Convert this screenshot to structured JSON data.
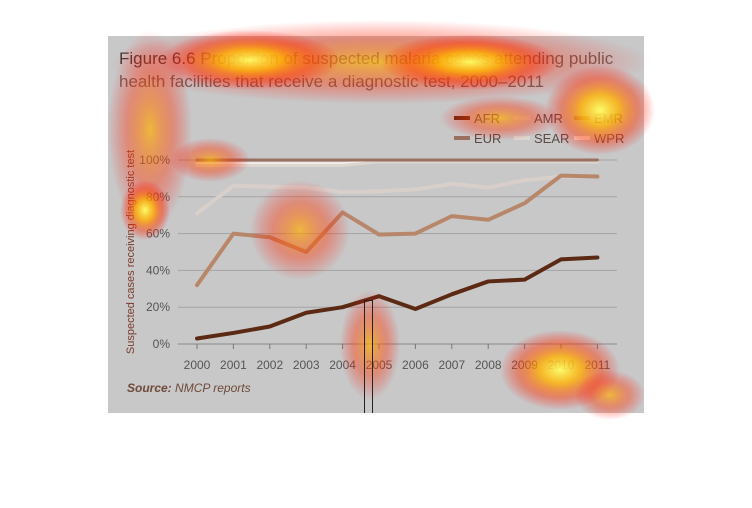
{
  "figure": {
    "label": "Figure 6.6",
    "title": "Proportion of suspected malaria cases attending public health facilities that receive a diagnostic test, 2000–2011",
    "source_label": "Source:",
    "source_text": "NMCP reports"
  },
  "chart_data": {
    "type": "line",
    "title": "Figure 6.6 Proportion of suspected malaria cases attending public health facilities that receive a diagnostic test, 2000–2011",
    "xlabel": "",
    "ylabel": "Suspected cases receiving diagnostic test",
    "x": [
      "2000",
      "2001",
      "2002",
      "2003",
      "2004",
      "2005",
      "2006",
      "2007",
      "2008",
      "2009",
      "2010",
      "2011"
    ],
    "ylim": [
      0,
      100
    ],
    "yticks": [
      "0%",
      "20%",
      "40%",
      "60%",
      "80%",
      "100%"
    ],
    "grid": true,
    "legend_position": "top-right",
    "series": [
      {
        "name": "AFR",
        "color": "#5c2a14",
        "values": [
          3,
          6,
          9.5,
          17,
          20,
          26,
          19,
          27,
          34,
          35,
          46,
          47
        ]
      },
      {
        "name": "AMR",
        "color": "#d8cfcb",
        "values": [
          71,
          86,
          85.5,
          85,
          82.5,
          83,
          84,
          87,
          85,
          89,
          91,
          91
        ]
      },
      {
        "name": "EMR",
        "color": "#b8876a",
        "values": [
          32,
          60,
          58,
          50,
          71.5,
          59.5,
          60,
          69.5,
          67.5,
          76.5,
          91.5,
          91
        ]
      },
      {
        "name": "EUR",
        "color": "#9a7060",
        "values": [
          100,
          100,
          100,
          100,
          100,
          100,
          100,
          100,
          100,
          100,
          100,
          100
        ]
      },
      {
        "name": "SEAR",
        "color": "#ddd5cf",
        "values": [
          97,
          97,
          97,
          97,
          97,
          99,
          99,
          99,
          99,
          99,
          99,
          99
        ]
      },
      {
        "name": "WPR",
        "color": "#f2eeea",
        "values": [
          98,
          98,
          98,
          98,
          98,
          99,
          99,
          99,
          99,
          99,
          99,
          99
        ]
      }
    ]
  }
}
